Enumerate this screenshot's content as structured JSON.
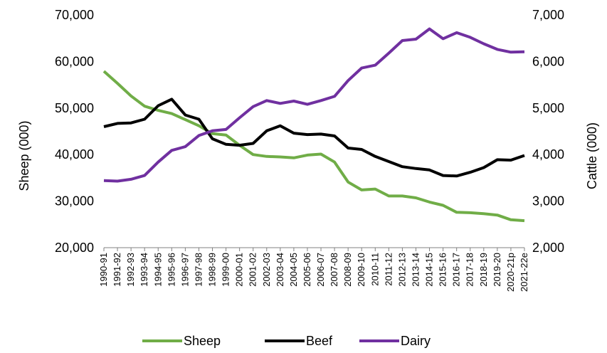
{
  "chart_data": {
    "type": "line",
    "title": "",
    "xlabel": "",
    "ylabel": "Sheep (000)",
    "y2label": "Cattle (000)",
    "ylim": [
      20000,
      70000
    ],
    "y2lim": [
      2000,
      7000
    ],
    "y_ticks": [
      "20,000",
      "30,000",
      "40,000",
      "50,000",
      "60,000",
      "70,000"
    ],
    "y2_ticks": [
      "2,000",
      "3,000",
      "4,000",
      "5,000",
      "6,000",
      "7,000"
    ],
    "grid": false,
    "legend_position": "bottom",
    "categories": [
      "1990-91",
      "1991-92",
      "1992-93",
      "1993-94",
      "1994-95",
      "1995-96",
      "1996-97",
      "1997-98",
      "1998-99",
      "1999-00",
      "2000-01",
      "2001-02",
      "2002-03",
      "2003-04",
      "2004-05",
      "2005-06",
      "2006-07",
      "2007-08",
      "2008-09",
      "2009-10",
      "2010-11",
      "2011-12",
      "2012-13",
      "2013-14",
      "2014-15",
      "2015-16",
      "2016-17",
      "2017-18",
      "2018-19",
      "2019-20",
      "2020-21p",
      "2021-22e"
    ],
    "series": [
      {
        "name": "Sheep",
        "axis": "left",
        "color": "#70ad47",
        "values": [
          57900,
          55300,
          52600,
          50400,
          49500,
          48800,
          47500,
          46200,
          44500,
          44200,
          42000,
          40000,
          39600,
          39500,
          39300,
          39900,
          40100,
          38400,
          34100,
          32400,
          32600,
          31100,
          31100,
          30700,
          29800,
          29100,
          27600,
          27500,
          27300,
          27000,
          26000,
          25800
        ]
      },
      {
        "name": "Beef",
        "axis": "right",
        "color": "#000000",
        "values": [
          4600,
          4670,
          4680,
          4760,
          5050,
          5190,
          4850,
          4760,
          4340,
          4220,
          4200,
          4240,
          4510,
          4620,
          4460,
          4430,
          4440,
          4400,
          4140,
          4110,
          3960,
          3850,
          3740,
          3700,
          3670,
          3550,
          3540,
          3620,
          3720,
          3890,
          3880,
          3980
        ]
      },
      {
        "name": "Dairy",
        "axis": "right",
        "color": "#7030a0",
        "values": [
          3440,
          3430,
          3470,
          3550,
          3840,
          4090,
          4170,
          4410,
          4510,
          4540,
          4790,
          5030,
          5160,
          5100,
          5150,
          5080,
          5160,
          5250,
          5590,
          5860,
          5920,
          6180,
          6450,
          6480,
          6700,
          6490,
          6620,
          6520,
          6380,
          6260,
          6200,
          6210
        ]
      }
    ]
  }
}
